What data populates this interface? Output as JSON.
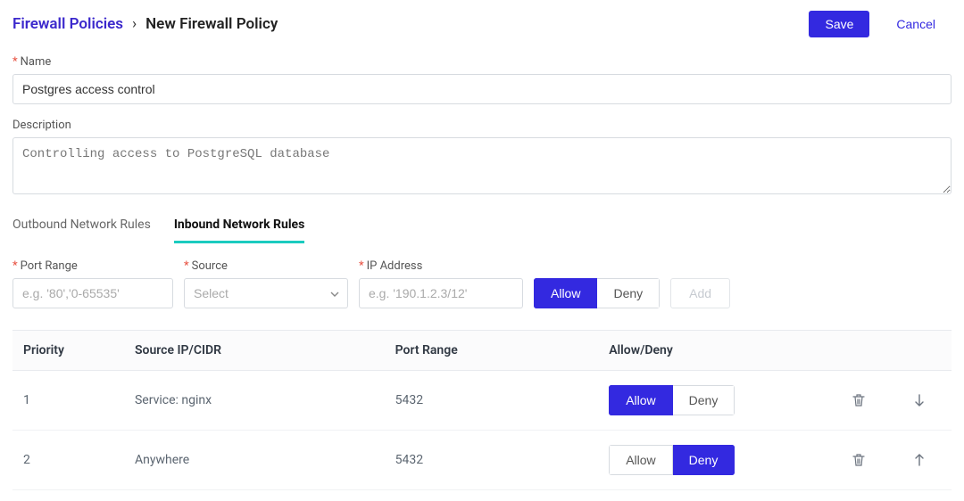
{
  "breadcrumb": {
    "parent": "Firewall Policies",
    "current": "New Firewall Policy"
  },
  "actions": {
    "save": "Save",
    "cancel": "Cancel"
  },
  "form": {
    "name_label": "Name",
    "name_value": "Postgres access control",
    "description_label": "Description",
    "description_value": "Controlling access to PostgreSQL database"
  },
  "tabs": {
    "outbound": "Outbound Network Rules",
    "inbound": "Inbound Network Rules"
  },
  "ruleForm": {
    "port_label": "Port Range",
    "port_placeholder": "e.g. '80','0-65535'",
    "source_label": "Source",
    "source_placeholder": "Select",
    "ip_label": "IP Address",
    "ip_placeholder": "e.g. '190.1.2.3/12'",
    "allow": "Allow",
    "deny": "Deny",
    "add": "Add"
  },
  "table": {
    "columns": {
      "priority": "Priority",
      "source": "Source IP/CIDR",
      "port": "Port Range",
      "allow": "Allow/Deny"
    },
    "rows": [
      {
        "priority": "1",
        "source": "Service: nginx",
        "port": "5432",
        "allow_active": "allow",
        "move": "down"
      },
      {
        "priority": "2",
        "source": "Anywhere",
        "port": "5432",
        "allow_active": "deny",
        "move": "up"
      }
    ],
    "allow_label": "Allow",
    "deny_label": "Deny"
  },
  "colors": {
    "primary": "#3329e0",
    "link": "#3b28cc",
    "tab_underline": "#1acbbf",
    "required": "#e74c3c",
    "border": "#d7dbe0"
  }
}
